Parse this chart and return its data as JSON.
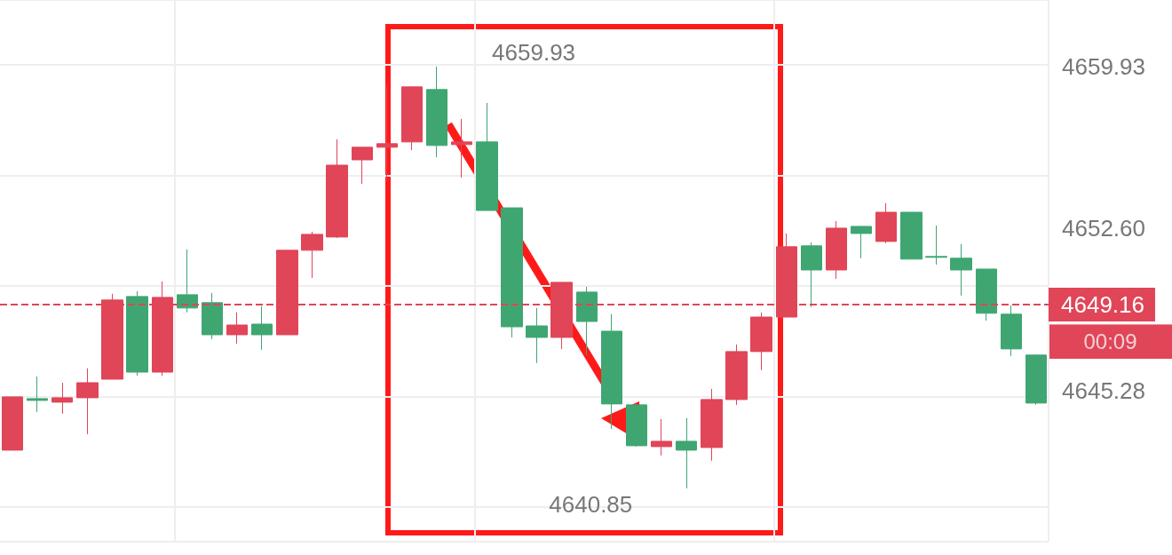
{
  "chart_data": {
    "type": "candlestick",
    "categories": [
      null,
      null,
      null,
      null,
      null,
      null,
      null,
      null,
      null,
      null,
      null,
      null,
      null,
      null,
      null,
      null,
      null,
      null,
      null,
      null,
      null,
      null,
      null,
      null,
      null,
      null,
      null,
      null,
      null,
      null,
      null,
      null,
      null,
      null,
      null,
      null,
      null,
      null,
      null,
      null,
      null,
      null
    ],
    "ohlc": [
      [
        4642.58,
        4644.99,
        4642.58,
        4644.99
      ],
      [
        4644.91,
        4645.91,
        4644.31,
        4644.83
      ],
      [
        4644.75,
        4645.63,
        4644.23,
        4644.95
      ],
      [
        4644.95,
        4646.28,
        4643.3,
        4645.63
      ],
      [
        4645.79,
        4649.65,
        4645.79,
        4649.37
      ],
      [
        4649.53,
        4649.77,
        4645.95,
        4646.11
      ],
      [
        4646.11,
        4650.21,
        4645.95,
        4649.49
      ],
      [
        4649.61,
        4651.66,
        4648.81,
        4649.01
      ],
      [
        4649.25,
        4649.69,
        4647.6,
        4647.8
      ],
      [
        4647.8,
        4648.81,
        4647.4,
        4648.24
      ],
      [
        4648.28,
        4649.09,
        4647.12,
        4647.8
      ],
      [
        4647.8,
        4651.62,
        4647.8,
        4651.62
      ],
      [
        4651.62,
        4652.46,
        4650.37,
        4652.34
      ],
      [
        4652.22,
        4656.64,
        4652.18,
        4655.47
      ],
      [
        4655.71,
        4656.28,
        4654.63,
        4656.28
      ],
      [
        4656.28,
        4659.09,
        4654.75,
        4656.44
      ],
      [
        4656.52,
        4659.01,
        4656.15,
        4659.01
      ],
      [
        4658.89,
        4659.93,
        4655.83,
        4656.36
      ],
      [
        4656.4,
        4657.56,
        4654.91,
        4656.52
      ],
      [
        4656.52,
        4658.28,
        4653.42,
        4653.42
      ],
      [
        4653.54,
        4653.54,
        4647.68,
        4648.16
      ],
      [
        4648.2,
        4649.01,
        4646.52,
        4647.68
      ],
      [
        4647.68,
        4650.17,
        4647.16,
        4650.17
      ],
      [
        4649.73,
        4649.97,
        4646.88,
        4648.4
      ],
      [
        4647.96,
        4648.73,
        4643.54,
        4644.67
      ],
      [
        4644.63,
        4644.63,
        4642.74,
        4642.78
      ],
      [
        4642.74,
        4643.99,
        4642.34,
        4642.98
      ],
      [
        4642.98,
        4644.03,
        4640.85,
        4642.58
      ],
      [
        4642.7,
        4645.35,
        4642.1,
        4644.87
      ],
      [
        4644.87,
        4647.36,
        4644.63,
        4647.04
      ],
      [
        4647.04,
        4648.81,
        4646.2,
        4648.6
      ],
      [
        4648.6,
        4652.38,
        4648.6,
        4651.78
      ],
      [
        4651.82,
        4651.98,
        4649.05,
        4650.73
      ],
      [
        4650.73,
        4652.94,
        4650.33,
        4652.62
      ],
      [
        4652.7,
        4652.7,
        4651.26,
        4652.38
      ],
      [
        4652.02,
        4653.75,
        4651.94,
        4653.34
      ],
      [
        4653.34,
        4653.34,
        4651.22,
        4651.22
      ],
      [
        4651.34,
        4652.74,
        4650.97,
        4651.3
      ],
      [
        4651.26,
        4651.9,
        4649.57,
        4650.73
      ],
      [
        4650.77,
        4650.77,
        4648.44,
        4648.77
      ],
      [
        4648.73,
        4649.13,
        4646.84,
        4647.16
      ],
      [
        4646.88,
        4646.88,
        4644.63,
        4644.71
      ]
    ],
    "colors": [
      "#e04558",
      "#3fa672",
      "#e04558",
      "#e04558",
      "#e04558",
      "#3fa672",
      "#e04558",
      "#3fa672",
      "#3fa672",
      "#e04558",
      "#3fa672",
      "#e04558",
      "#e04558",
      "#e04558",
      "#e04558",
      "#e04558",
      "#e04558",
      "#3fa672",
      "#e04558",
      "#3fa672",
      "#3fa672",
      "#3fa672",
      "#e04558",
      "#3fa672",
      "#3fa672",
      "#3fa672",
      "#e04558",
      "#3fa672",
      "#e04558",
      "#e04558",
      "#e04558",
      "#e04558",
      "#3fa672",
      "#e04558",
      "#3fa672",
      "#e04558",
      "#3fa672",
      "#3fa672",
      "#3fa672",
      "#3fa672",
      "#3fa672",
      "#3fa672"
    ],
    "ylim": [
      4638.44,
      4662.94
    ],
    "yticks": [
      4645.28,
      {
        "value": 4652.6,
        "label": "4652.60"
      },
      4659.93
    ],
    "grid": true,
    "tick_labels": "y",
    "ref_lines": [
      {
        "axis": "y",
        "value": 4649.16,
        "label": "4649.16",
        "color": "#e04558",
        "line_style": "dashed"
      }
    ],
    "annotations": [
      "4659.93",
      "4640.85",
      "00:09"
    ]
  }
}
